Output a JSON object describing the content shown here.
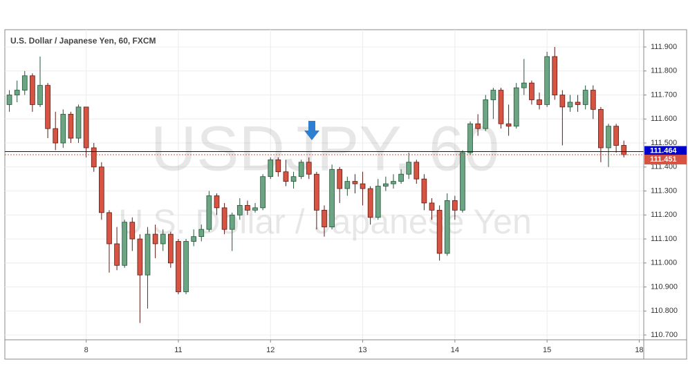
{
  "chart_data": {
    "type": "candlestick",
    "title": "U.S. Dollar / Japanese Yen, 60, FXCM",
    "watermark": "USDJPY, 60",
    "watermark_subtitle": "U.S. Dollar / Japanese Yen",
    "categories": [
      null,
      null,
      null,
      null,
      null,
      null,
      null,
      null,
      null,
      null,
      "8",
      null,
      null,
      null,
      null,
      null,
      null,
      null,
      null,
      null,
      null,
      null,
      "11",
      null,
      null,
      null,
      null,
      null,
      null,
      null,
      null,
      null,
      null,
      null,
      "12",
      null,
      null,
      null,
      null,
      null,
      null,
      null,
      null,
      null,
      null,
      null,
      "13",
      null,
      null,
      null,
      null,
      null,
      null,
      null,
      null,
      null,
      null,
      null,
      "14",
      null,
      null,
      null,
      null,
      null,
      null,
      null,
      null,
      null,
      null,
      null,
      "15",
      null,
      null,
      null,
      null,
      null,
      null,
      null,
      null,
      null,
      null,
      null,
      "18"
    ],
    "open": [
      111.66,
      111.7,
      111.72,
      111.78,
      111.66,
      111.74,
      111.56,
      111.5,
      111.62,
      111.52,
      111.65,
      111.48,
      111.4,
      111.21,
      111.08,
      110.99,
      111.17,
      111.1,
      110.95,
      111.12,
      111.08,
      111.12,
      111.09,
      110.88,
      111.09,
      111.11,
      111.14,
      111.28,
      111.23,
      111.14,
      111.2,
      111.24,
      111.22,
      111.23,
      111.36,
      111.43,
      111.38,
      111.34,
      111.36,
      111.42,
      111.37,
      111.22,
      111.15,
      111.39,
      111.31,
      111.34,
      111.33,
      111.31,
      111.19,
      111.32,
      111.33,
      111.34,
      111.37,
      111.42,
      111.35,
      111.25,
      111.22,
      111.04,
      111.26,
      111.22,
      111.46,
      111.58,
      111.56,
      111.68,
      111.72,
      111.58,
      111.57,
      111.73,
      111.75,
      111.68,
      111.66,
      111.86,
      111.7,
      111.65,
      111.67,
      111.66,
      111.72,
      111.64,
      111.48,
      111.57,
      111.49,
      null,
      null
    ],
    "high": [
      111.72,
      111.76,
      111.8,
      111.79,
      111.86,
      111.75,
      111.63,
      111.64,
      111.63,
      111.66,
      111.65,
      111.5,
      111.42,
      111.22,
      111.15,
      111.18,
      111.19,
      111.12,
      111.15,
      111.16,
      111.14,
      111.13,
      111.1,
      111.1,
      111.14,
      111.16,
      111.3,
      111.29,
      111.25,
      111.21,
      111.27,
      111.26,
      111.25,
      111.37,
      111.44,
      111.44,
      111.43,
      111.38,
      111.43,
      111.44,
      111.38,
      111.24,
      111.41,
      111.4,
      111.36,
      111.37,
      111.38,
      111.32,
      111.35,
      111.36,
      111.37,
      111.39,
      111.46,
      111.43,
      111.37,
      111.27,
      111.24,
      111.29,
      111.28,
      111.47,
      111.59,
      111.62,
      111.7,
      111.73,
      111.73,
      111.66,
      111.75,
      111.85,
      111.76,
      111.71,
      111.88,
      111.9,
      111.72,
      111.7,
      111.7,
      111.74,
      111.74,
      111.65,
      111.58,
      111.58,
      111.51,
      null,
      null
    ],
    "low": [
      111.63,
      111.67,
      111.7,
      111.63,
      111.65,
      111.52,
      111.47,
      111.48,
      111.5,
      111.5,
      111.44,
      111.38,
      111.18,
      110.96,
      110.97,
      110.98,
      111.05,
      110.75,
      110.81,
      111.02,
      111.05,
      110.98,
      110.87,
      110.87,
      111.07,
      111.09,
      111.13,
      111.2,
      111.12,
      111.05,
      111.18,
      111.2,
      111.21,
      111.22,
      111.35,
      111.36,
      111.32,
      111.31,
      111.35,
      111.35,
      111.14,
      111.11,
      111.14,
      111.25,
      111.28,
      111.29,
      111.24,
      111.16,
      111.18,
      111.3,
      111.31,
      111.33,
      111.35,
      111.33,
      111.22,
      111.18,
      111.01,
      111.03,
      111.18,
      111.21,
      111.45,
      111.53,
      111.55,
      111.6,
      111.56,
      111.53,
      111.56,
      111.7,
      111.66,
      111.64,
      111.65,
      111.68,
      111.49,
      111.63,
      111.63,
      111.64,
      111.6,
      111.42,
      111.4,
      111.46,
      111.44,
      null,
      null
    ],
    "close": [
      111.7,
      111.72,
      111.78,
      111.66,
      111.74,
      111.56,
      111.5,
      111.62,
      111.52,
      111.65,
      111.48,
      111.4,
      111.21,
      111.08,
      110.99,
      111.17,
      111.1,
      110.95,
      111.12,
      111.08,
      111.12,
      111.0,
      110.88,
      111.09,
      111.11,
      111.14,
      111.28,
      111.23,
      111.14,
      111.2,
      111.24,
      111.22,
      111.23,
      111.36,
      111.43,
      111.38,
      111.34,
      111.36,
      111.42,
      111.37,
      111.22,
      111.15,
      111.39,
      111.31,
      111.34,
      111.33,
      111.31,
      111.19,
      111.32,
      111.33,
      111.34,
      111.37,
      111.42,
      111.35,
      111.25,
      111.22,
      111.04,
      111.26,
      111.22,
      111.46,
      111.58,
      111.56,
      111.68,
      111.72,
      111.58,
      111.57,
      111.73,
      111.75,
      111.68,
      111.66,
      111.86,
      111.7,
      111.65,
      111.67,
      111.66,
      111.72,
      111.64,
      111.48,
      111.57,
      111.49,
      111.451,
      null,
      null
    ],
    "up_color": "#6ba583",
    "down_color": "#d75442",
    "ylim": [
      110.68,
      111.972
    ],
    "yticks": [
      {
        "value": 111.9,
        "label": "111.900"
      },
      {
        "value": 111.8,
        "label": "111.800"
      },
      {
        "value": 111.7,
        "label": "111.700"
      },
      {
        "value": 111.6,
        "label": "111.600"
      },
      {
        "value": 111.5,
        "label": "111.500"
      },
      {
        "value": 111.4,
        "label": "111.400"
      },
      {
        "value": 111.3,
        "label": "111.300"
      },
      {
        "value": 111.2,
        "label": "111.200"
      },
      {
        "value": 111.1,
        "label": "111.100"
      },
      {
        "value": 111.0,
        "label": "111.000"
      },
      {
        "value": 110.9,
        "label": "110.900"
      },
      {
        "value": 110.8,
        "label": "110.800"
      },
      {
        "value": 110.7,
        "label": "110.700"
      }
    ],
    "price_lines": [
      {
        "value": 111.464,
        "color": "#0000cc"
      },
      {
        "value": 111.451,
        "color": "#d75442"
      }
    ],
    "grid": true
  }
}
